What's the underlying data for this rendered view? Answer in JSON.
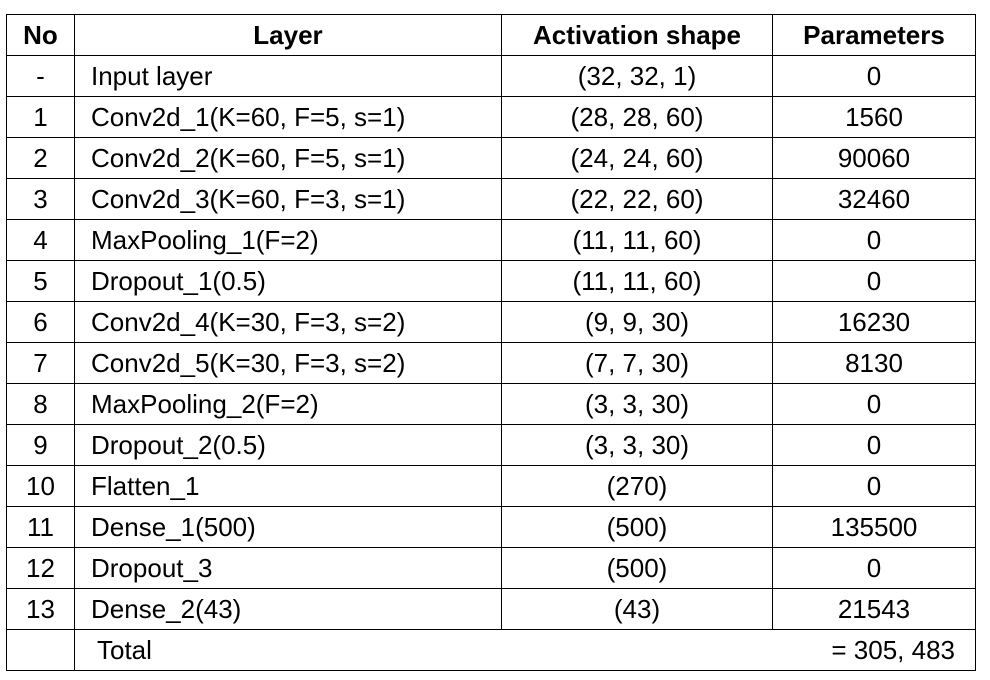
{
  "table": {
    "headers": {
      "no": "No",
      "layer": "Layer",
      "shape": "Activation shape",
      "params": "Parameters"
    },
    "rows": [
      {
        "no": "-",
        "layer": "Input layer",
        "shape": "(32, 32, 1)",
        "params": "0"
      },
      {
        "no": "1",
        "layer": "Conv2d_1(K=60, F=5, s=1)",
        "shape": "(28, 28, 60)",
        "params": "1560"
      },
      {
        "no": "2",
        "layer": "Conv2d_2(K=60, F=5, s=1)",
        "shape": "(24, 24, 60)",
        "params": "90060"
      },
      {
        "no": "3",
        "layer": "Conv2d_3(K=60, F=3, s=1)",
        "shape": "(22, 22, 60)",
        "params": "32460"
      },
      {
        "no": "4",
        "layer": "MaxPooling_1(F=2)",
        "shape": "(11, 11, 60)",
        "params": "0"
      },
      {
        "no": "5",
        "layer": "Dropout_1(0.5)",
        "shape": "(11, 11, 60)",
        "params": "0"
      },
      {
        "no": "6",
        "layer": "Conv2d_4(K=30, F=3, s=2)",
        "shape": "(9, 9, 30)",
        "params": "16230"
      },
      {
        "no": "7",
        "layer": "Conv2d_5(K=30, F=3, s=2)",
        "shape": "(7, 7, 30)",
        "params": "8130"
      },
      {
        "no": "8",
        "layer": "MaxPooling_2(F=2)",
        "shape": "(3, 3, 30)",
        "params": "0"
      },
      {
        "no": "9",
        "layer": "Dropout_2(0.5)",
        "shape": "(3, 3, 30)",
        "params": "0"
      },
      {
        "no": "10",
        "layer": "Flatten_1",
        "shape": "(270)",
        "params": "0"
      },
      {
        "no": "11",
        "layer": "Dense_1(500)",
        "shape": "(500)",
        "params": "135500"
      },
      {
        "no": "12",
        "layer": "Dropout_3",
        "shape": "(500)",
        "params": "0"
      },
      {
        "no": "13",
        "layer": "Dense_2(43)",
        "shape": "(43)",
        "params": "21543"
      }
    ],
    "total": {
      "label": "Total",
      "value": "= 305, 483"
    }
  }
}
